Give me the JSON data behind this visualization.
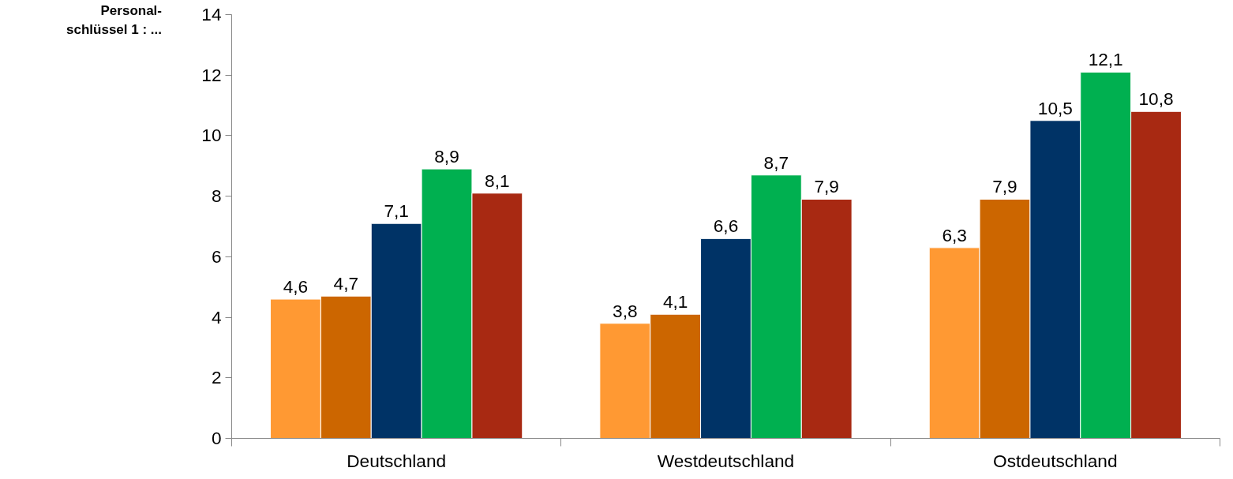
{
  "chart_data": {
    "type": "bar",
    "ylabel": "Personal-\nschlüssel 1 : ...",
    "categories": [
      "Deutschland",
      "Westdeutschland",
      "Ostdeutschland"
    ],
    "series": [
      {
        "color": "#ff9933",
        "values": [
          4.6,
          3.8,
          6.3
        ],
        "value_labels": [
          "4,6",
          "3,8",
          "6,3"
        ]
      },
      {
        "color": "#cc6600",
        "values": [
          4.7,
          4.1,
          7.9
        ],
        "value_labels": [
          "4,7",
          "4,1",
          "7,9"
        ]
      },
      {
        "color": "#003366",
        "values": [
          7.1,
          6.6,
          10.5
        ],
        "value_labels": [
          "7,1",
          "6,6",
          "10,5"
        ]
      },
      {
        "color": "#00b050",
        "values": [
          8.9,
          8.7,
          12.1
        ],
        "value_labels": [
          "8,9",
          "8,7",
          "12,1"
        ]
      },
      {
        "color": "#a82912",
        "values": [
          8.1,
          7.9,
          10.8
        ],
        "value_labels": [
          "8,1",
          "7,9",
          "10,8"
        ]
      }
    ],
    "ylim": [
      0,
      14
    ],
    "yticks": [
      0,
      2,
      4,
      6,
      8,
      10,
      12,
      14
    ],
    "grid": false
  }
}
